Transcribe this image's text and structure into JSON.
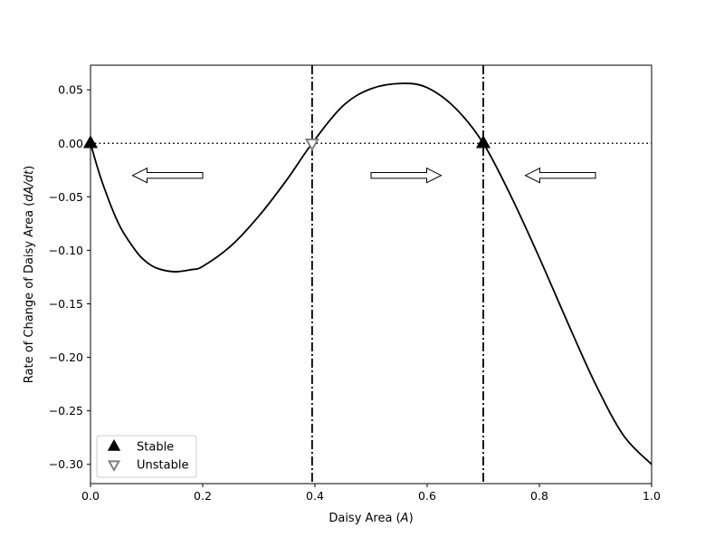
{
  "chart_data": {
    "type": "line",
    "title": "",
    "xlabel": "Daisy Area ($A$)",
    "ylabel": "Rate of Change of Daisy Area ($dA/dt$)",
    "xlabel_parts": {
      "text": "Daisy Area (",
      "math": "A",
      "close": ")"
    },
    "ylabel_parts": {
      "text": "Rate of Change of Daisy Area (",
      "math": "dA/dt",
      "close": ")"
    },
    "xlim": [
      0.0,
      1.0
    ],
    "ylim": [
      -0.318,
      0.073
    ],
    "x_ticks": [
      0.0,
      0.2,
      0.4,
      0.6,
      0.8,
      1.0
    ],
    "x_tick_labels": [
      "0.0",
      "0.2",
      "0.4",
      "0.6",
      "0.8",
      "1.0"
    ],
    "y_ticks": [
      0.05,
      0.0,
      -0.05,
      -0.1,
      -0.15,
      -0.2,
      -0.25,
      -0.3
    ],
    "y_tick_labels": [
      "0.05",
      "0.00",
      "−0.05",
      "−0.10",
      "−0.15",
      "−0.20",
      "−0.25",
      "−0.30"
    ],
    "grid": false,
    "curve": {
      "color": "#000000",
      "x": [
        0.0,
        0.02,
        0.05,
        0.08,
        0.1,
        0.12,
        0.15,
        0.18,
        0.2,
        0.25,
        0.3,
        0.35,
        0.395,
        0.45,
        0.5,
        0.555,
        0.6,
        0.65,
        0.7,
        0.75,
        0.8,
        0.85,
        0.9,
        0.95,
        1.0
      ],
      "y": [
        0.0,
        -0.035,
        -0.075,
        -0.1,
        -0.111,
        -0.117,
        -0.12,
        -0.118,
        -0.115,
        -0.096,
        -0.068,
        -0.034,
        0.0,
        0.035,
        0.051,
        0.056,
        0.052,
        0.033,
        0.0,
        -0.05,
        -0.107,
        -0.167,
        -0.225,
        -0.273,
        -0.3
      ]
    },
    "zero_line": {
      "y": 0.0,
      "style": "dotted",
      "color": "#000000"
    },
    "vertical_lines": [
      {
        "x": 0.395,
        "style": "dash-dot",
        "color": "#000000"
      },
      {
        "x": 0.7,
        "style": "dash-dot",
        "color": "#000000"
      }
    ],
    "equilibria": [
      {
        "x": 0.0,
        "y": 0.0,
        "kind": "stable"
      },
      {
        "x": 0.395,
        "y": 0.0,
        "kind": "unstable"
      },
      {
        "x": 0.7,
        "y": 0.0,
        "kind": "stable"
      }
    ],
    "flow_arrows": [
      {
        "from": 0.2,
        "to": 0.075,
        "y": -0.03,
        "direction": "left"
      },
      {
        "from": 0.5,
        "to": 0.625,
        "y": -0.03,
        "direction": "right"
      },
      {
        "from": 0.9,
        "to": 0.775,
        "y": -0.03,
        "direction": "left"
      }
    ],
    "legend": {
      "position": "lower-left",
      "entries": [
        {
          "label": "Stable",
          "marker": "triangle-up",
          "fill": "#000000",
          "edge": "#000000"
        },
        {
          "label": "Unstable",
          "marker": "triangle-down",
          "fill": "#ffffff",
          "edge": "#808080"
        }
      ]
    }
  }
}
